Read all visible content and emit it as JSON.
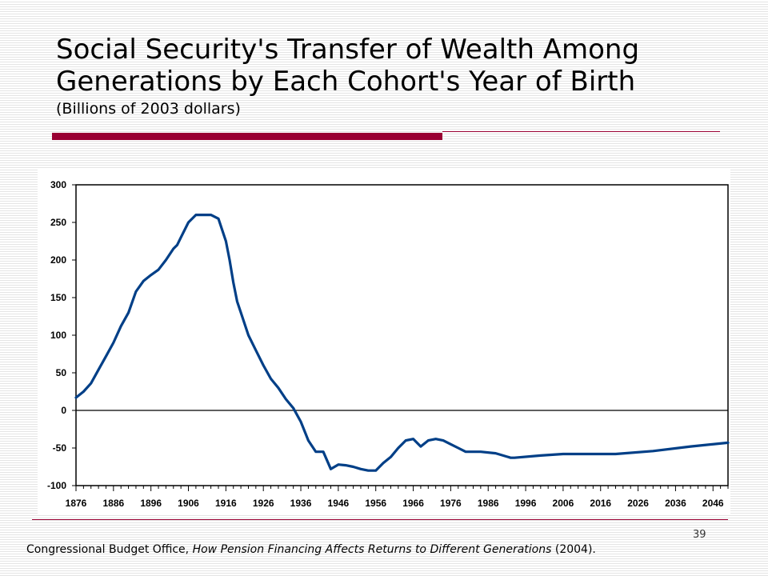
{
  "slide": {
    "title_line1": "Social Security's Transfer of Wealth Among",
    "title_line2": "Generations by Each Cohort's Year of Birth",
    "subtitle": "(Billions of 2003 dollars)",
    "page_number": "39",
    "source_author": "Congressional Budget Office, ",
    "source_title": "How Pension Financing Affects Returns to Different Generations",
    "source_year": " (2004).",
    "accent_color": "#990033",
    "line_color": "#003f87"
  },
  "chart_data": {
    "type": "line",
    "title": "Social Security's Transfer of Wealth Among Generations by Each Cohort's Year of Birth",
    "subtitle": "(Billions of 2003 dollars)",
    "xlabel": "",
    "ylabel": "",
    "xlim": [
      1876,
      2050
    ],
    "ylim": [
      -100,
      300
    ],
    "grid": false,
    "legend": "none",
    "x_ticks": [
      1876,
      1886,
      1896,
      1906,
      1916,
      1926,
      1936,
      1946,
      1956,
      1966,
      1976,
      1986,
      1996,
      2006,
      2016,
      2026,
      2036,
      2046
    ],
    "y_ticks": [
      300,
      250,
      200,
      150,
      100,
      50,
      0,
      -50,
      -100
    ],
    "series": [
      {
        "values_x": [
          1876,
          1878,
          1880,
          1882,
          1884,
          1886,
          1888,
          1890,
          1892,
          1894,
          1896,
          1898,
          1900,
          1902,
          1903,
          1904,
          1906,
          1908,
          1910,
          1912,
          1914,
          1916,
          1917,
          1918,
          1919,
          1920,
          1922,
          1924,
          1926,
          1928,
          1930,
          1932,
          1934,
          1936,
          1938,
          1940,
          1942,
          1944,
          1946,
          1948,
          1950,
          1952,
          1954,
          1956,
          1958,
          1960,
          1962,
          1964,
          1966,
          1968,
          1970,
          1972,
          1974,
          1976,
          1978,
          1980,
          1984,
          1988,
          1992,
          1993,
          2000,
          2006,
          2014,
          2020,
          2030,
          2040,
          2050
        ],
        "values_y": [
          17,
          25,
          36,
          54,
          72,
          90,
          112,
          130,
          158,
          172,
          180,
          187,
          200,
          215,
          220,
          230,
          250,
          260,
          260,
          260,
          255,
          225,
          200,
          170,
          145,
          130,
          100,
          80,
          60,
          42,
          30,
          15,
          3,
          -15,
          -40,
          -55,
          -55,
          -78,
          -72,
          -73,
          -75,
          -78,
          -80,
          -80,
          -70,
          -62,
          -50,
          -40,
          -38,
          -48,
          -40,
          -38,
          -40,
          -45,
          -50,
          -55,
          -55,
          -57,
          -63,
          -63,
          -60,
          -58,
          -58,
          -58,
          -54,
          -48,
          -43
        ]
      }
    ]
  }
}
